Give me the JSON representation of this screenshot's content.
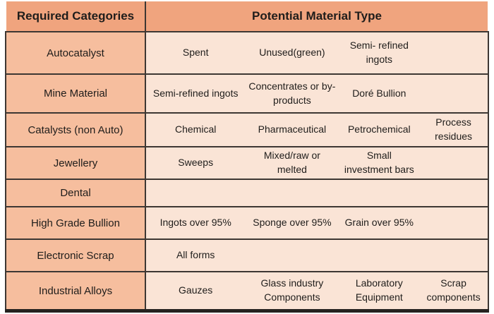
{
  "table": {
    "header": {
      "categories_label": "Required Categories",
      "materials_label": "Potential Material Type"
    },
    "rows": [
      {
        "category": "Autocatalyst",
        "materials": [
          "Spent",
          "Unused(green)",
          "Semi- refined ingots",
          ""
        ]
      },
      {
        "category": "Mine Material",
        "materials": [
          "Semi-refined ingots",
          "Concentrates or by-products",
          "Doré Bullion",
          ""
        ]
      },
      {
        "category": "Catalysts (non Auto)",
        "materials": [
          "Chemical",
          "Pharmaceutical",
          "Petrochemical",
          "Process residues"
        ]
      },
      {
        "category": "Jewellery",
        "materials": [
          "Sweeps",
          "Mixed/raw or melted",
          "Small investment bars",
          ""
        ]
      },
      {
        "category": "Dental",
        "materials": [
          "",
          "",
          "",
          ""
        ]
      },
      {
        "category": "High Grade Bullion",
        "materials": [
          "Ingots over 95%",
          "Sponge over 95%",
          "Grain over 95%",
          ""
        ]
      },
      {
        "category": "Electronic Scrap",
        "materials": [
          "All forms",
          "",
          "",
          ""
        ]
      },
      {
        "category": "Industrial Alloys",
        "materials": [
          "Gauzes",
          "Glass industry Components",
          "Laboratory Equipment",
          "Scrap components"
        ]
      }
    ]
  },
  "colors": {
    "header-bg": "#F0A47E",
    "category-bg": "#F6BE9E",
    "data-bg": "#FAE4D6",
    "grid-line": "#3D3733",
    "bottom-border": "#262220",
    "text": "#1F1D1B",
    "page-bg": "#FFFFFF"
  }
}
